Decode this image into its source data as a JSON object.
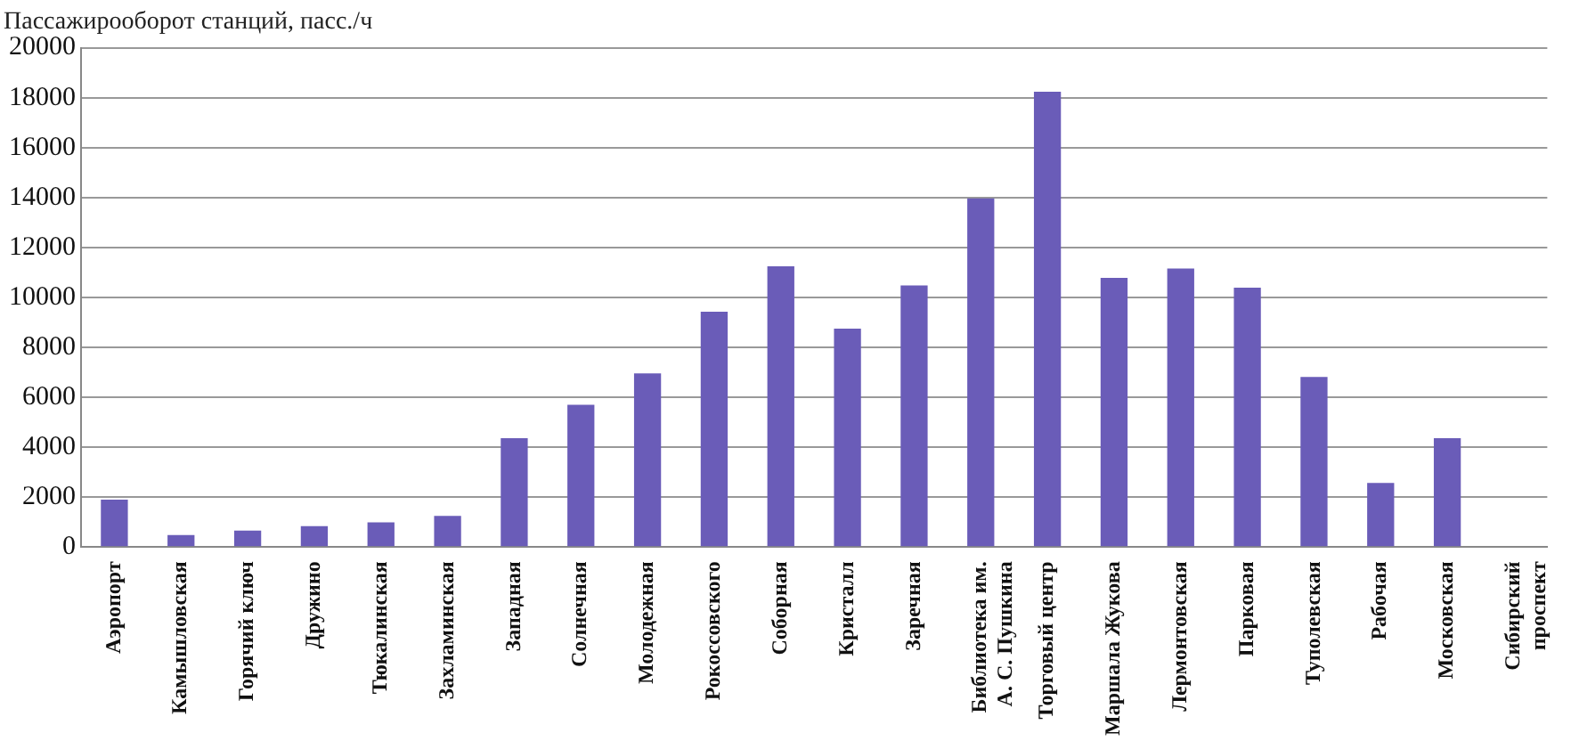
{
  "chart_data": {
    "type": "bar",
    "ylabel": "Пассажирооборот станций, пасс./ч",
    "categories": [
      "Аэропорт",
      "Камышловская",
      "Горячий ключ",
      "Дружино",
      "Тюкалинская",
      "Захламинская",
      "Западная",
      "Солнечная",
      "Молодежная",
      "Рокоссовского",
      "Соборная",
      "Кристалл",
      "Заречная",
      "Библиотека им.\nА. С. Пушкина",
      "Торговый центр",
      "Маршала Жукова",
      "Лермонтовская",
      "Парковая",
      "Туполевская",
      "Рабочая",
      "Московская",
      "Сибирский\nпроспект"
    ],
    "values": [
      1900,
      480,
      660,
      840,
      990,
      1250,
      4360,
      5700,
      6960,
      9430,
      11250,
      8750,
      10480,
      13970,
      18240,
      10780,
      11160,
      10390,
      6810,
      2570,
      4360,
      0
    ],
    "color": "#6a5cb8",
    "ylim": [
      0,
      20000
    ],
    "yticks": [
      0,
      2000,
      4000,
      6000,
      8000,
      10000,
      12000,
      14000,
      16000,
      18000,
      20000
    ],
    "grid": "y"
  }
}
